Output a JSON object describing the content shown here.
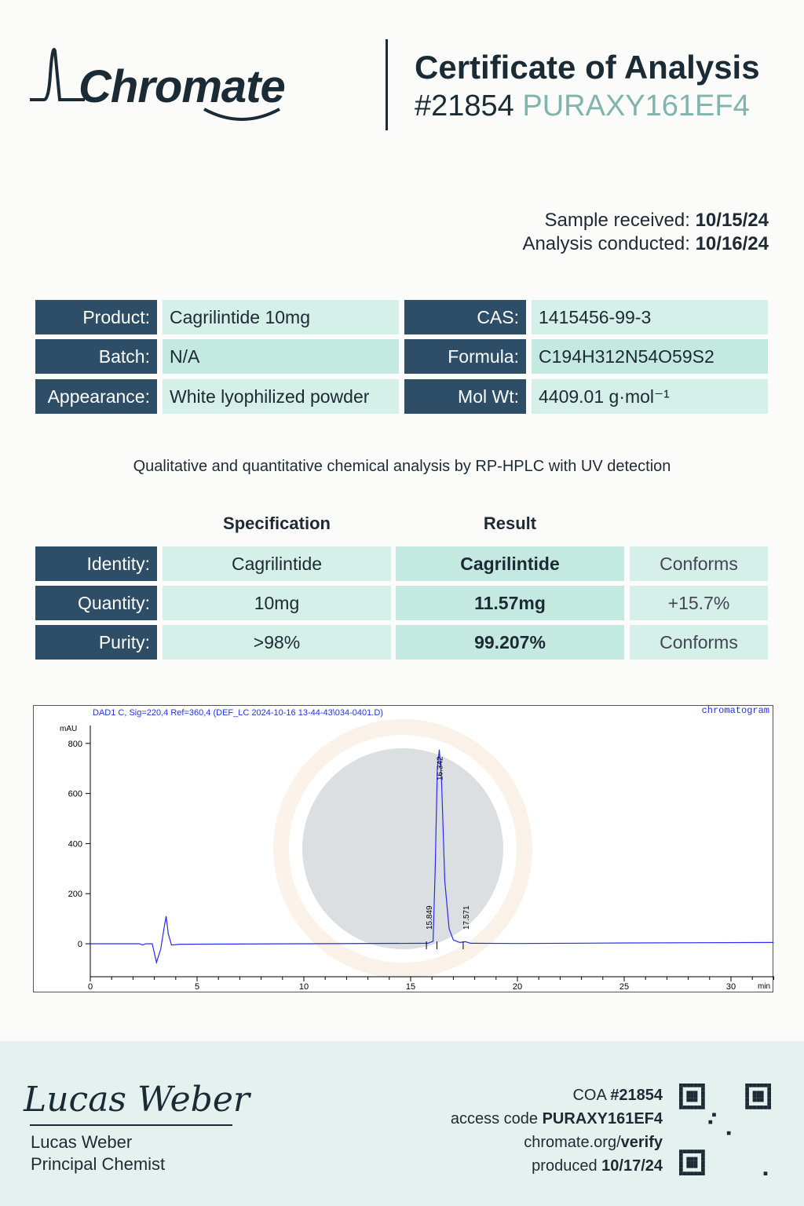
{
  "brand": {
    "name": "Chromate"
  },
  "header": {
    "title": "Certificate of Analysis",
    "number": "#21854",
    "code": "PURAXY161EF4"
  },
  "dates": {
    "received_label": "Sample received:",
    "received": "10/15/24",
    "conducted_label": "Analysis conducted:",
    "conducted": "10/16/24"
  },
  "info": [
    {
      "label": "Product:",
      "value": "Cagrilintide 10mg",
      "label2": "CAS:",
      "value2": "1415456-99-3"
    },
    {
      "label": "Batch:",
      "value": "N/A",
      "label2": "Formula:",
      "value2": "C194H312N54O59S2"
    },
    {
      "label": "Appearance:",
      "value": "White lyophilized powder",
      "label2": "Mol Wt:",
      "value2": "4409.01 g·mol⁻¹"
    }
  ],
  "method": "Qualitative and quantitative chemical analysis by RP-HPLC with UV detection",
  "results": {
    "spec_header": "Specification",
    "result_header": "Result",
    "rows": [
      {
        "label": "Identity:",
        "spec": "Cagrilintide",
        "result": "Cagrilintide",
        "status": "Conforms"
      },
      {
        "label": "Quantity:",
        "spec": "10mg",
        "result": "11.57mg",
        "status": "+15.7%"
      },
      {
        "label": "Purity:",
        "spec": ">98%",
        "result": "99.207%",
        "status": "Conforms"
      }
    ]
  },
  "chart_data": {
    "type": "line",
    "title": "DAD1 C, Sig=220,4 Ref=360,4 (DEF_LC 2024-10-16 13-44-43\\034-0401.D)",
    "corner_label": "chromatogram",
    "ylabel": "mAU",
    "xlabel": "min",
    "xlim": [
      0,
      32
    ],
    "ylim": [
      -150,
      900
    ],
    "xticks": [
      0,
      5,
      10,
      15,
      20,
      25,
      30
    ],
    "yticks": [
      0,
      200,
      400,
      600,
      800
    ],
    "peaks": [
      {
        "rt": "15.849",
        "x": 15.849
      },
      {
        "rt": "16.342",
        "x": 16.342
      },
      {
        "rt": "17.571",
        "x": 17.571
      }
    ],
    "trace": [
      [
        0,
        0
      ],
      [
        2.3,
        0
      ],
      [
        2.45,
        -5
      ],
      [
        2.6,
        0
      ],
      [
        2.9,
        0
      ],
      [
        3.1,
        -75
      ],
      [
        3.3,
        -20
      ],
      [
        3.45,
        60
      ],
      [
        3.55,
        110
      ],
      [
        3.65,
        40
      ],
      [
        3.8,
        -5
      ],
      [
        4.2,
        -2
      ],
      [
        10,
        0
      ],
      [
        15.8,
        2
      ],
      [
        16.05,
        10
      ],
      [
        16.15,
        300
      ],
      [
        16.25,
        700
      ],
      [
        16.342,
        775
      ],
      [
        16.45,
        650
      ],
      [
        16.6,
        250
      ],
      [
        16.8,
        60
      ],
      [
        17.0,
        15
      ],
      [
        17.3,
        5
      ],
      [
        17.57,
        8
      ],
      [
        17.8,
        2
      ],
      [
        20,
        1
      ],
      [
        25,
        3
      ],
      [
        32,
        5
      ]
    ]
  },
  "signature": {
    "name": "Lucas Weber",
    "title": "Principal Chemist",
    "script": "Lucas Weber"
  },
  "footer": {
    "coa_label": "COA",
    "coa": "#21854",
    "access_label": "access code",
    "access": "PURAXY161EF4",
    "site": "chromate.org/",
    "site_bold": "verify",
    "produced_label": "produced",
    "produced": "10/17/24"
  }
}
